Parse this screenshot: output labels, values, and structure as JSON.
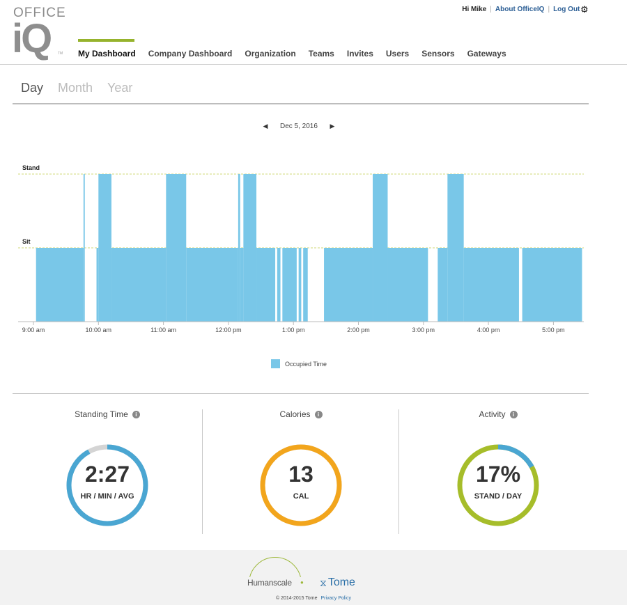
{
  "logo": {
    "office": "OFFICE",
    "iq": "iQ",
    "tm": "TM"
  },
  "top_links": {
    "greeting": "Hi Mike",
    "about": "About OfficeIQ",
    "logout": "Log Out"
  },
  "nav": {
    "items": [
      {
        "label": "My Dashboard",
        "active": true
      },
      {
        "label": "Company Dashboard"
      },
      {
        "label": "Organization"
      },
      {
        "label": "Teams"
      },
      {
        "label": "Invites"
      },
      {
        "label": "Users"
      },
      {
        "label": "Sensors"
      },
      {
        "label": "Gateways"
      }
    ]
  },
  "tabs": [
    {
      "label": "Day",
      "active": true
    },
    {
      "label": "Month"
    },
    {
      "label": "Year"
    }
  ],
  "date_nav": {
    "date": "Dec 5, 2016",
    "prev_icon": "chevron-left-icon",
    "next_icon": "chevron-right-icon"
  },
  "legend": {
    "label": "Occupied Time"
  },
  "colors": {
    "bar": "#79c7e8",
    "accent": "#96b32c",
    "standing": "#4aa6d2",
    "calories": "#f2a51c",
    "activity": "#a6bd2a",
    "ring_track": "#d4d4d4",
    "guide": "#d2d97a"
  },
  "chart_data": {
    "type": "bar",
    "levels": {
      "stand": "Stand",
      "sit": "Sit"
    },
    "x_range": [
      "9:00 am",
      "5:30 pm"
    ],
    "xlim_hours": [
      9.0,
      17.5
    ],
    "x_ticks": [
      {
        "label": "9:00 am",
        "hour": 9
      },
      {
        "label": "10:00 am",
        "hour": 10
      },
      {
        "label": "11:00 am",
        "hour": 11
      },
      {
        "label": "12:00 pm",
        "hour": 12
      },
      {
        "label": "1:00 pm",
        "hour": 13
      },
      {
        "label": "2:00 pm",
        "hour": 14
      },
      {
        "label": "3:00 pm",
        "hour": 15
      },
      {
        "label": "4:00 pm",
        "hour": 16
      },
      {
        "label": "5:00 pm",
        "hour": 17
      }
    ],
    "series": [
      {
        "name": "Occupied Time",
        "segments": [
          {
            "start": 9.04,
            "end": 9.77,
            "state": "sit"
          },
          {
            "start": 9.77,
            "end": 9.79,
            "state": "stand"
          },
          {
            "start": 9.97,
            "end": 10.0,
            "state": "sit"
          },
          {
            "start": 10.0,
            "end": 10.2,
            "state": "stand"
          },
          {
            "start": 10.2,
            "end": 11.04,
            "state": "sit"
          },
          {
            "start": 11.04,
            "end": 11.35,
            "state": "stand"
          },
          {
            "start": 11.35,
            "end": 12.15,
            "state": "sit"
          },
          {
            "start": 12.15,
            "end": 12.18,
            "state": "stand"
          },
          {
            "start": 12.18,
            "end": 12.23,
            "state": "sit"
          },
          {
            "start": 12.23,
            "end": 12.43,
            "state": "stand"
          },
          {
            "start": 12.43,
            "end": 12.72,
            "state": "sit"
          },
          {
            "start": 12.75,
            "end": 12.8,
            "state": "sit"
          },
          {
            "start": 12.83,
            "end": 13.05,
            "state": "sit"
          },
          {
            "start": 13.08,
            "end": 13.12,
            "state": "sit"
          },
          {
            "start": 13.15,
            "end": 13.22,
            "state": "sit"
          },
          {
            "start": 13.47,
            "end": 14.22,
            "state": "sit"
          },
          {
            "start": 14.22,
            "end": 14.45,
            "state": "stand"
          },
          {
            "start": 14.45,
            "end": 15.07,
            "state": "sit"
          },
          {
            "start": 15.22,
            "end": 15.37,
            "state": "sit"
          },
          {
            "start": 15.37,
            "end": 15.62,
            "state": "stand"
          },
          {
            "start": 15.62,
            "end": 16.47,
            "state": "sit"
          },
          {
            "start": 16.52,
            "end": 17.44,
            "state": "sit"
          }
        ]
      }
    ]
  },
  "stats": {
    "standing": {
      "title": "Standing Time",
      "value": "2:27",
      "unit": "HR / MIN / AVG",
      "fraction": 0.92
    },
    "calories": {
      "title": "Calories",
      "value": "13",
      "unit": "CAL",
      "fraction": 1.0
    },
    "activity": {
      "title": "Activity",
      "value": "17%",
      "unit": "STAND / DAY",
      "fraction": 0.17
    }
  },
  "footer": {
    "humanscale": "Humanscale",
    "tome": "Tome",
    "copyright": "© 2014-2015 Tome",
    "privacy": "Privacy Policy"
  }
}
